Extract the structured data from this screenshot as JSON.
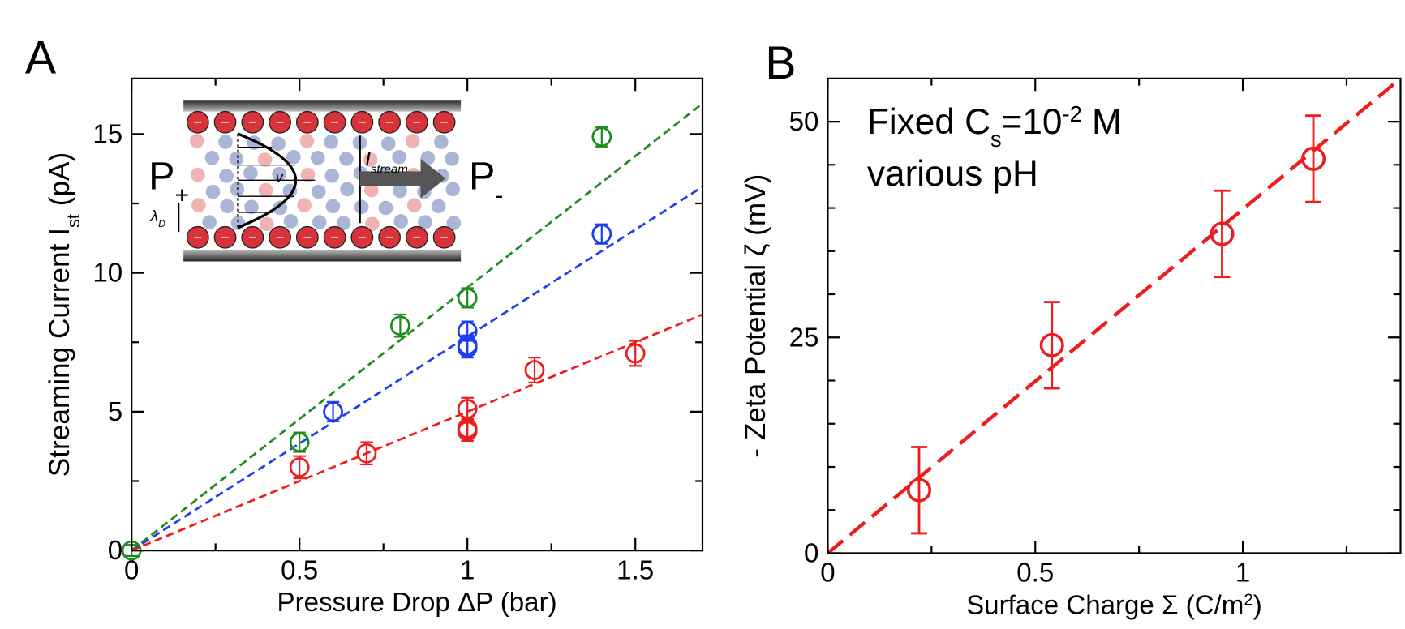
{
  "chart_data": [
    {
      "type": "scatter",
      "panel": "A",
      "xlabel": [
        {
          "text": "Pressure Drop ΔP (bar)"
        }
      ],
      "ylabel": [
        {
          "text": "Streaming Current I"
        },
        {
          "text": "st",
          "sub": true
        },
        {
          "text": " (pA)"
        }
      ],
      "xlim": [
        0,
        1.7
      ],
      "ylim": [
        0,
        17
      ],
      "xticks": [
        0,
        0.5,
        1,
        1.5
      ],
      "yticks": [
        0,
        5,
        10,
        15
      ],
      "xminor": [
        0.25,
        0.75,
        1.25
      ],
      "yminor": [
        2.5,
        7.5,
        12.5
      ],
      "series": [
        {
          "color": "#ee1c1c",
          "x": [
            0.5,
            0.7,
            1,
            1,
            1,
            1.2,
            1.5
          ],
          "values": [
            3.0,
            3.5,
            5.1,
            4.4,
            4.3,
            6.5,
            7.1
          ],
          "errors": [
            0.4,
            0.4,
            0.4,
            0.35,
            0.35,
            0.45,
            0.45
          ]
        },
        {
          "color": "#1e8c1e",
          "x": [
            0,
            0.5,
            0.8,
            1,
            1.4
          ],
          "values": [
            0,
            3.9,
            8.1,
            9.1,
            14.9
          ],
          "errors": [
            0.2,
            0.35,
            0.4,
            0.35,
            0.35
          ]
        },
        {
          "color": "#1e3ef0",
          "x": [
            0.6,
            1,
            1,
            1,
            1.4
          ],
          "values": [
            5.0,
            7.9,
            7.4,
            7.3,
            11.4
          ],
          "errors": [
            0.35,
            0.35,
            0.35,
            0.35,
            0.35
          ]
        }
      ],
      "fits": [
        {
          "color": "#1e8c1e",
          "x": [
            0,
            1.7
          ],
          "values": [
            0,
            16.1
          ]
        },
        {
          "color": "#1e3ef0",
          "x": [
            0,
            1.7
          ],
          "values": [
            0,
            13.1
          ]
        },
        {
          "color": "#ee1c1c",
          "x": [
            0,
            1.7
          ],
          "values": [
            0,
            8.5
          ]
        }
      ],
      "inset": {
        "left": [
          {
            "text": "P"
          },
          {
            "text": "+",
            "sub": true
          }
        ],
        "right": [
          {
            "text": "P"
          },
          {
            "text": "-",
            "sub": true
          }
        ],
        "flow": [
          {
            "text": "I"
          },
          {
            "text": "stream",
            "sub": true
          }
        ],
        "velocity": "v",
        "debye": [
          {
            "text": "λ"
          },
          {
            "text": "D",
            "sub": true
          }
        ]
      }
    },
    {
      "type": "scatter",
      "panel": "B",
      "xlabel": [
        {
          "text": "Surface Charge Σ (C/m"
        },
        {
          "text": "2",
          "sup": true
        },
        {
          "text": ")"
        }
      ],
      "ylabel": [
        {
          "text": "- Zeta Potential ζ (mV)"
        }
      ],
      "xlim": [
        0,
        1.38
      ],
      "ylim": [
        0,
        55
      ],
      "xticks": [
        0,
        0.5,
        1
      ],
      "yticks": [
        0,
        25,
        50
      ],
      "xminor": [
        0.25,
        0.75,
        1.25
      ],
      "yminor": [
        5,
        10,
        15,
        20,
        30,
        35,
        40,
        45
      ],
      "series": [
        {
          "color": "#ee1c1c",
          "x": [
            0.22,
            0.54,
            0.95,
            1.17
          ],
          "values": [
            7.3,
            24.1,
            37.0,
            45.7
          ],
          "errors": [
            5,
            5,
            5,
            5
          ]
        }
      ],
      "fits": [
        {
          "color": "#ee1c1c",
          "x": [
            0,
            1.38
          ],
          "values": [
            0,
            55
          ]
        }
      ],
      "annotation": [
        [
          {
            "text": "Fixed C"
          },
          {
            "text": "s",
            "sub": true
          },
          {
            "text": "=10"
          },
          {
            "text": "-2",
            "sup": true
          },
          {
            "text": " M"
          }
        ],
        [
          {
            "text": "various pH"
          }
        ]
      ]
    }
  ]
}
